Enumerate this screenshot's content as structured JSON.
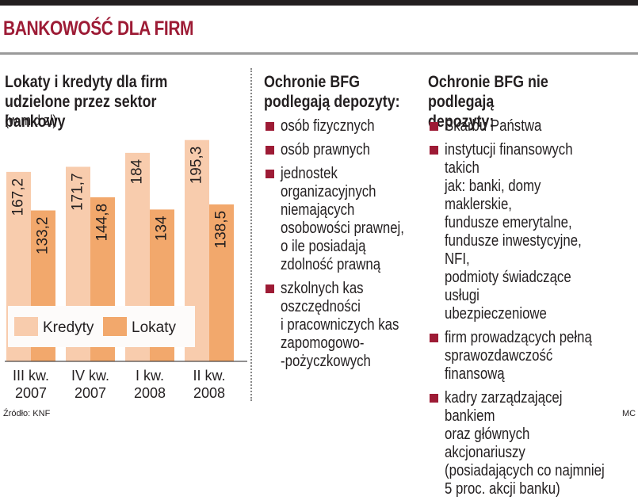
{
  "headline": "BANKOWOŚĆ DLA FIRM",
  "colors": {
    "accent": "#9d1b35",
    "kredyty": "#f8ccad",
    "lokaty": "#f2a86c",
    "text": "#231f20",
    "legend_bg": "#fdfbfa"
  },
  "chart_data": {
    "type": "bar",
    "title": "Lokaty i kredyty dla firm udzielone przez sektor bankowy",
    "unit": "(w mld zł)",
    "categories": [
      "III kw.\n2007",
      "IV kw.\n2007",
      "I kw.\n2008",
      "II kw.\n2008"
    ],
    "series": [
      {
        "name": "Kredyty",
        "values": [
          167.2,
          171.7,
          184,
          195.3
        ],
        "labels": [
          "167,2",
          "171,7",
          "184",
          "195,3"
        ],
        "color": "#f8ccad"
      },
      {
        "name": "Lokaty",
        "values": [
          133.2,
          144.8,
          134,
          138.5
        ],
        "labels": [
          "133,2",
          "144,8",
          "134",
          "138,5"
        ],
        "color": "#f2a86c"
      }
    ],
    "ylim": [
      0,
      200
    ],
    "grid": false,
    "legend_position": "bottom-inside",
    "data_labels": "rotated-inside-top"
  },
  "source": "Źródło: KNF",
  "credit": "MC",
  "covered": {
    "title": "Ochronie BFG\npodlegają depozyty:",
    "items": [
      "osób fizycznych",
      "osób prawnych",
      "jednostek\norganizacyjnych\nniemających\nosobowości prawnej,\no ile posiadają\nzdolność prawną",
      "szkolnych kas\noszczędności\ni pracowniczych kas\nzapomogowo-\n-pożyczkowych"
    ]
  },
  "not_covered": {
    "title": "Ochronie BFG nie podlegają\ndepozyty:",
    "items": [
      "Skarbu Państwa",
      "instytucji finansowych takich\njak: banki, domy maklerskie,\nfundusze emerytalne,\nfundusze inwestycyjne, NFI,\npodmioty świadczące usługi\nubezpieczeniowe",
      "firm prowadzących pełną\nsprawozdawczość finansową",
      "kadry zarządzającej bankiem\noraz głównych akcjonariuszy\n(posiadających co najmniej\n5 proc. akcji banku)"
    ]
  }
}
